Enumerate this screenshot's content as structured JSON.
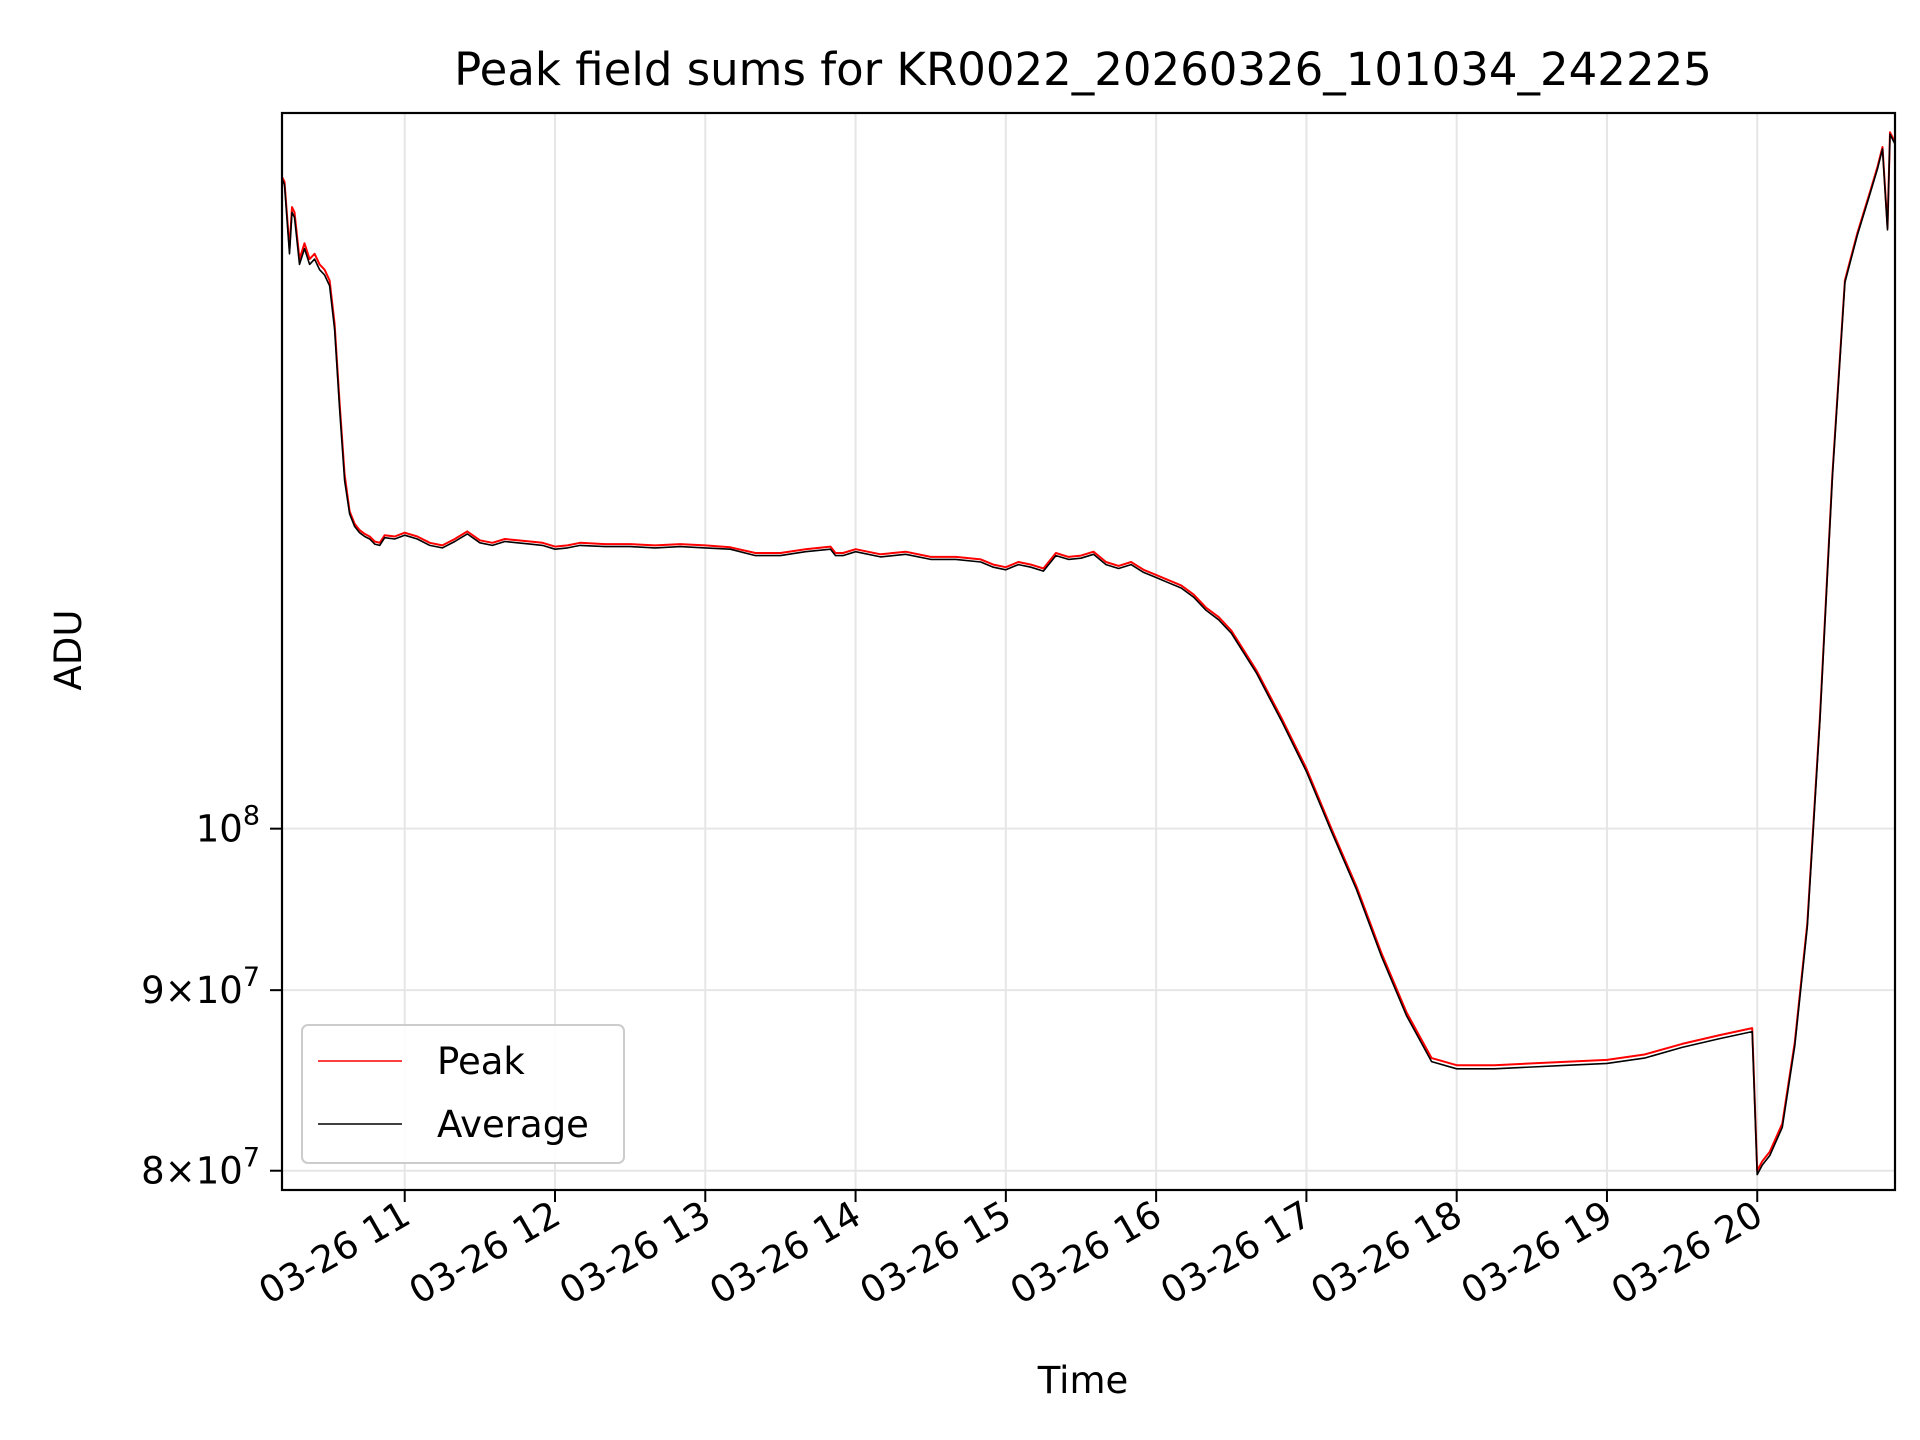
{
  "chart_data": {
    "type": "line",
    "title": "Peak field sums for KR0022_20260326_101034_242225",
    "xlabel": "Time",
    "ylabel": "ADU",
    "x_unit": "time (date 03-26)",
    "xlim": [
      "03-26 10:11",
      "03-26 20:55"
    ],
    "ylim": [
      79000000,
      159500000
    ],
    "yscale": "log",
    "grid": true,
    "legend_loc": "lower left",
    "x_ticks": [
      "03-26 11",
      "03-26 12",
      "03-26 13",
      "03-26 14",
      "03-26 15",
      "03-26 16",
      "03-26 17",
      "03-26 18",
      "03-26 19",
      "03-26 20"
    ],
    "y_ticks": [
      {
        "value": 80000000,
        "mantissa": "8",
        "base": "10",
        "exp": "7"
      },
      {
        "value": 90000000,
        "mantissa": "9",
        "base": "10",
        "exp": "7"
      },
      {
        "value": 100000000,
        "mantissa": "",
        "base": "10",
        "exp": "8"
      }
    ],
    "x": [
      "10:11",
      "10:12",
      "10:14",
      "10:15",
      "10:16",
      "10:18",
      "10:20",
      "10:22",
      "10:24",
      "10:26",
      "10:28",
      "10:30",
      "10:32",
      "10:34",
      "10:36",
      "10:38",
      "10:40",
      "10:42",
      "10:44",
      "10:46",
      "10:48",
      "10:50",
      "10:52",
      "10:56",
      "11:00",
      "11:05",
      "11:10",
      "11:15",
      "11:20",
      "11:25",
      "11:30",
      "11:35",
      "11:40",
      "11:45",
      "11:50",
      "11:55",
      "12:00",
      "12:05",
      "12:10",
      "12:20",
      "12:30",
      "12:40",
      "12:50",
      "13:00",
      "13:10",
      "13:20",
      "13:30",
      "13:40",
      "13:50",
      "13:52",
      "13:55",
      "14:00",
      "14:10",
      "14:20",
      "14:30",
      "14:40",
      "14:50",
      "14:55",
      "15:00",
      "15:05",
      "15:10",
      "15:15",
      "15:20",
      "15:25",
      "15:30",
      "15:35",
      "15:40",
      "15:45",
      "15:50",
      "15:55",
      "16:00",
      "16:05",
      "16:10",
      "16:15",
      "16:20",
      "16:25",
      "16:30",
      "16:40",
      "16:50",
      "17:00",
      "17:10",
      "17:20",
      "17:30",
      "17:40",
      "17:50",
      "18:00",
      "18:15",
      "18:30",
      "18:45",
      "19:00",
      "19:15",
      "19:30",
      "19:45",
      "19:58",
      "20:00",
      "20:02",
      "20:05",
      "20:10",
      "20:15",
      "20:20",
      "20:25",
      "20:30",
      "20:35",
      "20:40",
      "20:45",
      "20:48",
      "20:50",
      "20:52",
      "20:53",
      "20:55"
    ],
    "series": [
      {
        "name": "Peak",
        "color": "#ff0000",
        "values": [
          153000000,
          152500000,
          146000000,
          150000000,
          149500000,
          145000000,
          146500000,
          145000000,
          145500000,
          144500000,
          144000000,
          143000000,
          139000000,
          132000000,
          126000000,
          123000000,
          122000000,
          121500000,
          121200000,
          121000000,
          120600000,
          120500000,
          121100000,
          121000000,
          121300000,
          121000000,
          120500000,
          120300000,
          120800000,
          121400000,
          120700000,
          120500000,
          120800000,
          120700000,
          120600000,
          120500000,
          120200000,
          120300000,
          120500000,
          120400000,
          120400000,
          120300000,
          120400000,
          120300000,
          120150000,
          119700000,
          119700000,
          120000000,
          120200000,
          119700000,
          119700000,
          120000000,
          119600000,
          119800000,
          119400000,
          119400000,
          119200000,
          118800000,
          118600000,
          119000000,
          118800000,
          118500000,
          119700000,
          119400000,
          119500000,
          119800000,
          119000000,
          118700000,
          119000000,
          118400000,
          118000000,
          117600000,
          117200000,
          116500000,
          115500000,
          114800000,
          113800000,
          110900000,
          107500000,
          104000000,
          100000000,
          96300000,
          92200000,
          88700000,
          86100000,
          85700000,
          85700000,
          85800000,
          85900000,
          86000000,
          86300000,
          86900000,
          87400000,
          87800000,
          80000000,
          80500000,
          81000000,
          82500000,
          87000000,
          94000000,
          107500000,
          126000000,
          143000000,
          147500000,
          151500000,
          154000000,
          156000000,
          148000000,
          157500000,
          156500000
        ]
      },
      {
        "name": "Average",
        "color": "#000000",
        "values": [
          152800000,
          152200000,
          145500000,
          149500000,
          149000000,
          144500000,
          146000000,
          144500000,
          145000000,
          144000000,
          143500000,
          142500000,
          138500000,
          131500000,
          125500000,
          122800000,
          121800000,
          121300000,
          121000000,
          120800000,
          120400000,
          120300000,
          120900000,
          120800000,
          121100000,
          120800000,
          120300000,
          120100000,
          120600000,
          121200000,
          120500000,
          120300000,
          120600000,
          120500000,
          120400000,
          120300000,
          120000000,
          120100000,
          120300000,
          120200000,
          120200000,
          120100000,
          120200000,
          120100000,
          120000000,
          119500000,
          119500000,
          119800000,
          120000000,
          119500000,
          119500000,
          119800000,
          119400000,
          119600000,
          119200000,
          119200000,
          119000000,
          118600000,
          118400000,
          118800000,
          118600000,
          118300000,
          119500000,
          119200000,
          119300000,
          119600000,
          118800000,
          118500000,
          118800000,
          118200000,
          117800000,
          117400000,
          117000000,
          116300000,
          115300000,
          114600000,
          113600000,
          110700000,
          107300000,
          103800000,
          99800000,
          96100000,
          92000000,
          88500000,
          85900000,
          85500000,
          85500000,
          85600000,
          85700000,
          85800000,
          86100000,
          86700000,
          87200000,
          87600000,
          79800000,
          80300000,
          80800000,
          82300000,
          86800000,
          93800000,
          107300000,
          125800000,
          142800000,
          147300000,
          151300000,
          153800000,
          155800000,
          147800000,
          157300000,
          156300000
        ]
      }
    ]
  }
}
